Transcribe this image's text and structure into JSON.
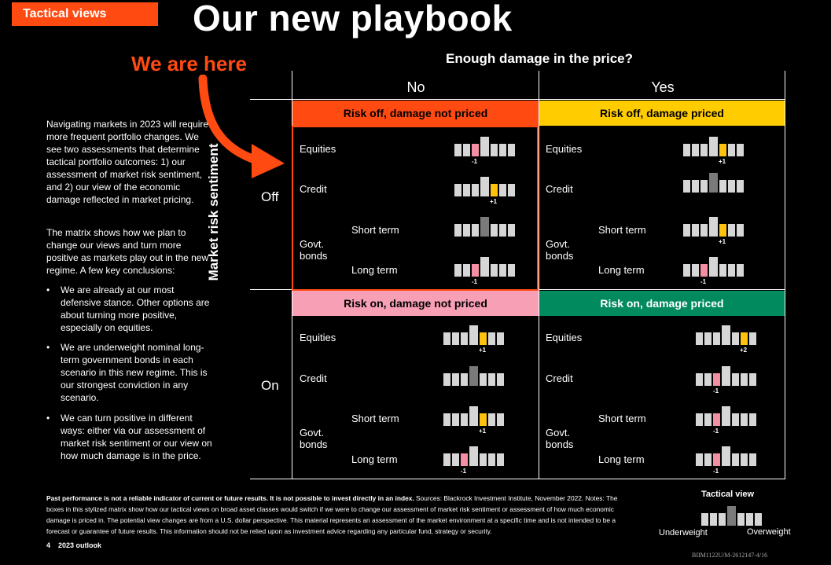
{
  "tag": "Tactical views",
  "title": "Our new playbook",
  "we_are_here": "We are here",
  "matrix": {
    "top_heading": "Enough damage in the price?",
    "col_no": "No",
    "col_yes": "Yes",
    "side_heading": "Market risk sentiment",
    "row_off": "Off",
    "row_on": "On",
    "q1": "Risk off, damage not priced",
    "q2": "Risk off, damage priced",
    "q3": "Risk on, damage not priced",
    "q4": "Risk on, damage priced",
    "colors": {
      "q1": "#ff4a12",
      "q2": "#ffcc00",
      "q3": "#f79fb4",
      "q4": "#008a5e",
      "accent": "#ff4a12"
    },
    "labels": {
      "equities": "Equities",
      "credit": "Credit",
      "govt": "Govt. bonds",
      "short": "Short term",
      "long": "Long term"
    },
    "values": {
      "q1": {
        "equities": "-1",
        "credit": "+1",
        "short": "",
        "long": "-1"
      },
      "q2": {
        "equities": "+1",
        "credit": "",
        "short": "+1",
        "long": "-1"
      },
      "q3": {
        "equities": "+1",
        "credit": "",
        "short": "+1",
        "long": "-1"
      },
      "q4": {
        "equities": "+2",
        "credit": "-1",
        "short": "-1",
        "long": "-1"
      }
    }
  },
  "intro_p1": "Navigating markets in 2023 will require more frequent portfolio changes. We see two assessments that determine tactical portfolio outcomes: 1) our assessment of market risk sentiment, and 2) our view of the economic damage reflected in market pricing.",
  "intro_p2": "The matrix shows how we plan to change our views and turn more positive as markets play out in the new regime. A few key conclusions:",
  "bullets": [
    "We are already at our most defensive stance. Other options are about turning more positive, especially on equities.",
    "We are underweight nominal long-term government bonds in each scenario in this new regime. This is our strongest conviction in any scenario.",
    "We can turn positive in different ways: either via our assessment of market risk sentiment or our view on how much damage is in the price."
  ],
  "legend": {
    "title": "Tactical view",
    "under": "Underweight",
    "over": "Overweight"
  },
  "footnote_bold": "Past performance is not a reliable indicator of current or future results. It is not possible to invest directly in an index.",
  "footnote": " Sources: Blackrock Investment Institute, November 2022. Notes: The boxes in this stylized matrix  show how our tactical views on broad asset classes would switch if we were to change our assessment of market risk sentiment or assessment of how much economic damage is priced in. The potential view changes are from a U.S. dollar perspective. This material represents an assessment of the market environment at a specific time and is not intended to be a forecast or guarantee of future results. This information should not be relied upon as investment advice regarding any particular fund, strategy or security.",
  "page_num": "4",
  "page_label": "2023 outlook",
  "doc_code": "BIIM1122U/M-2612147-4/16"
}
